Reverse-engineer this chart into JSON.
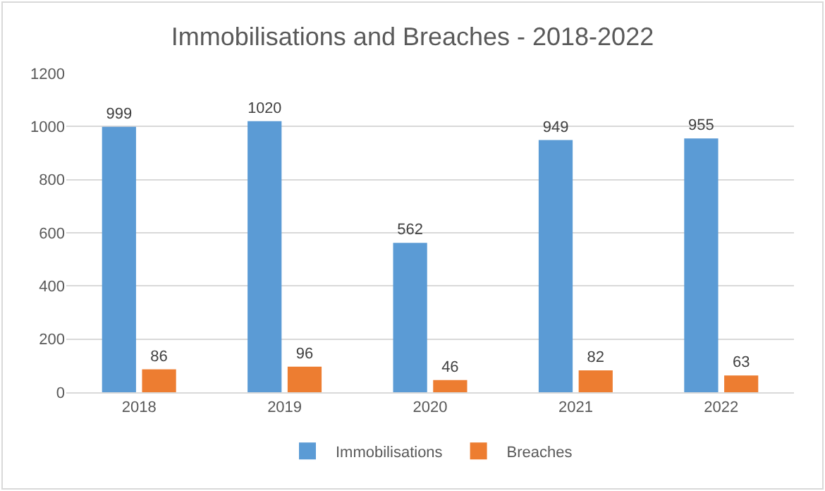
{
  "chart_data": {
    "type": "bar",
    "title": "Immobilisations and Breaches - 2018-2022",
    "categories": [
      "2018",
      "2019",
      "2020",
      "2021",
      "2022"
    ],
    "series": [
      {
        "name": "Immobilisations",
        "color": "#5b9bd5",
        "values": [
          999,
          1020,
          562,
          949,
          955
        ]
      },
      {
        "name": "Breaches",
        "color": "#ed7d31",
        "values": [
          86,
          96,
          46,
          82,
          63
        ]
      }
    ],
    "ylim": [
      0,
      1200
    ],
    "yticks": [
      0,
      200,
      400,
      600,
      800,
      1000,
      1200
    ],
    "grid": "y",
    "legend": "bottom",
    "data_labels": true
  }
}
